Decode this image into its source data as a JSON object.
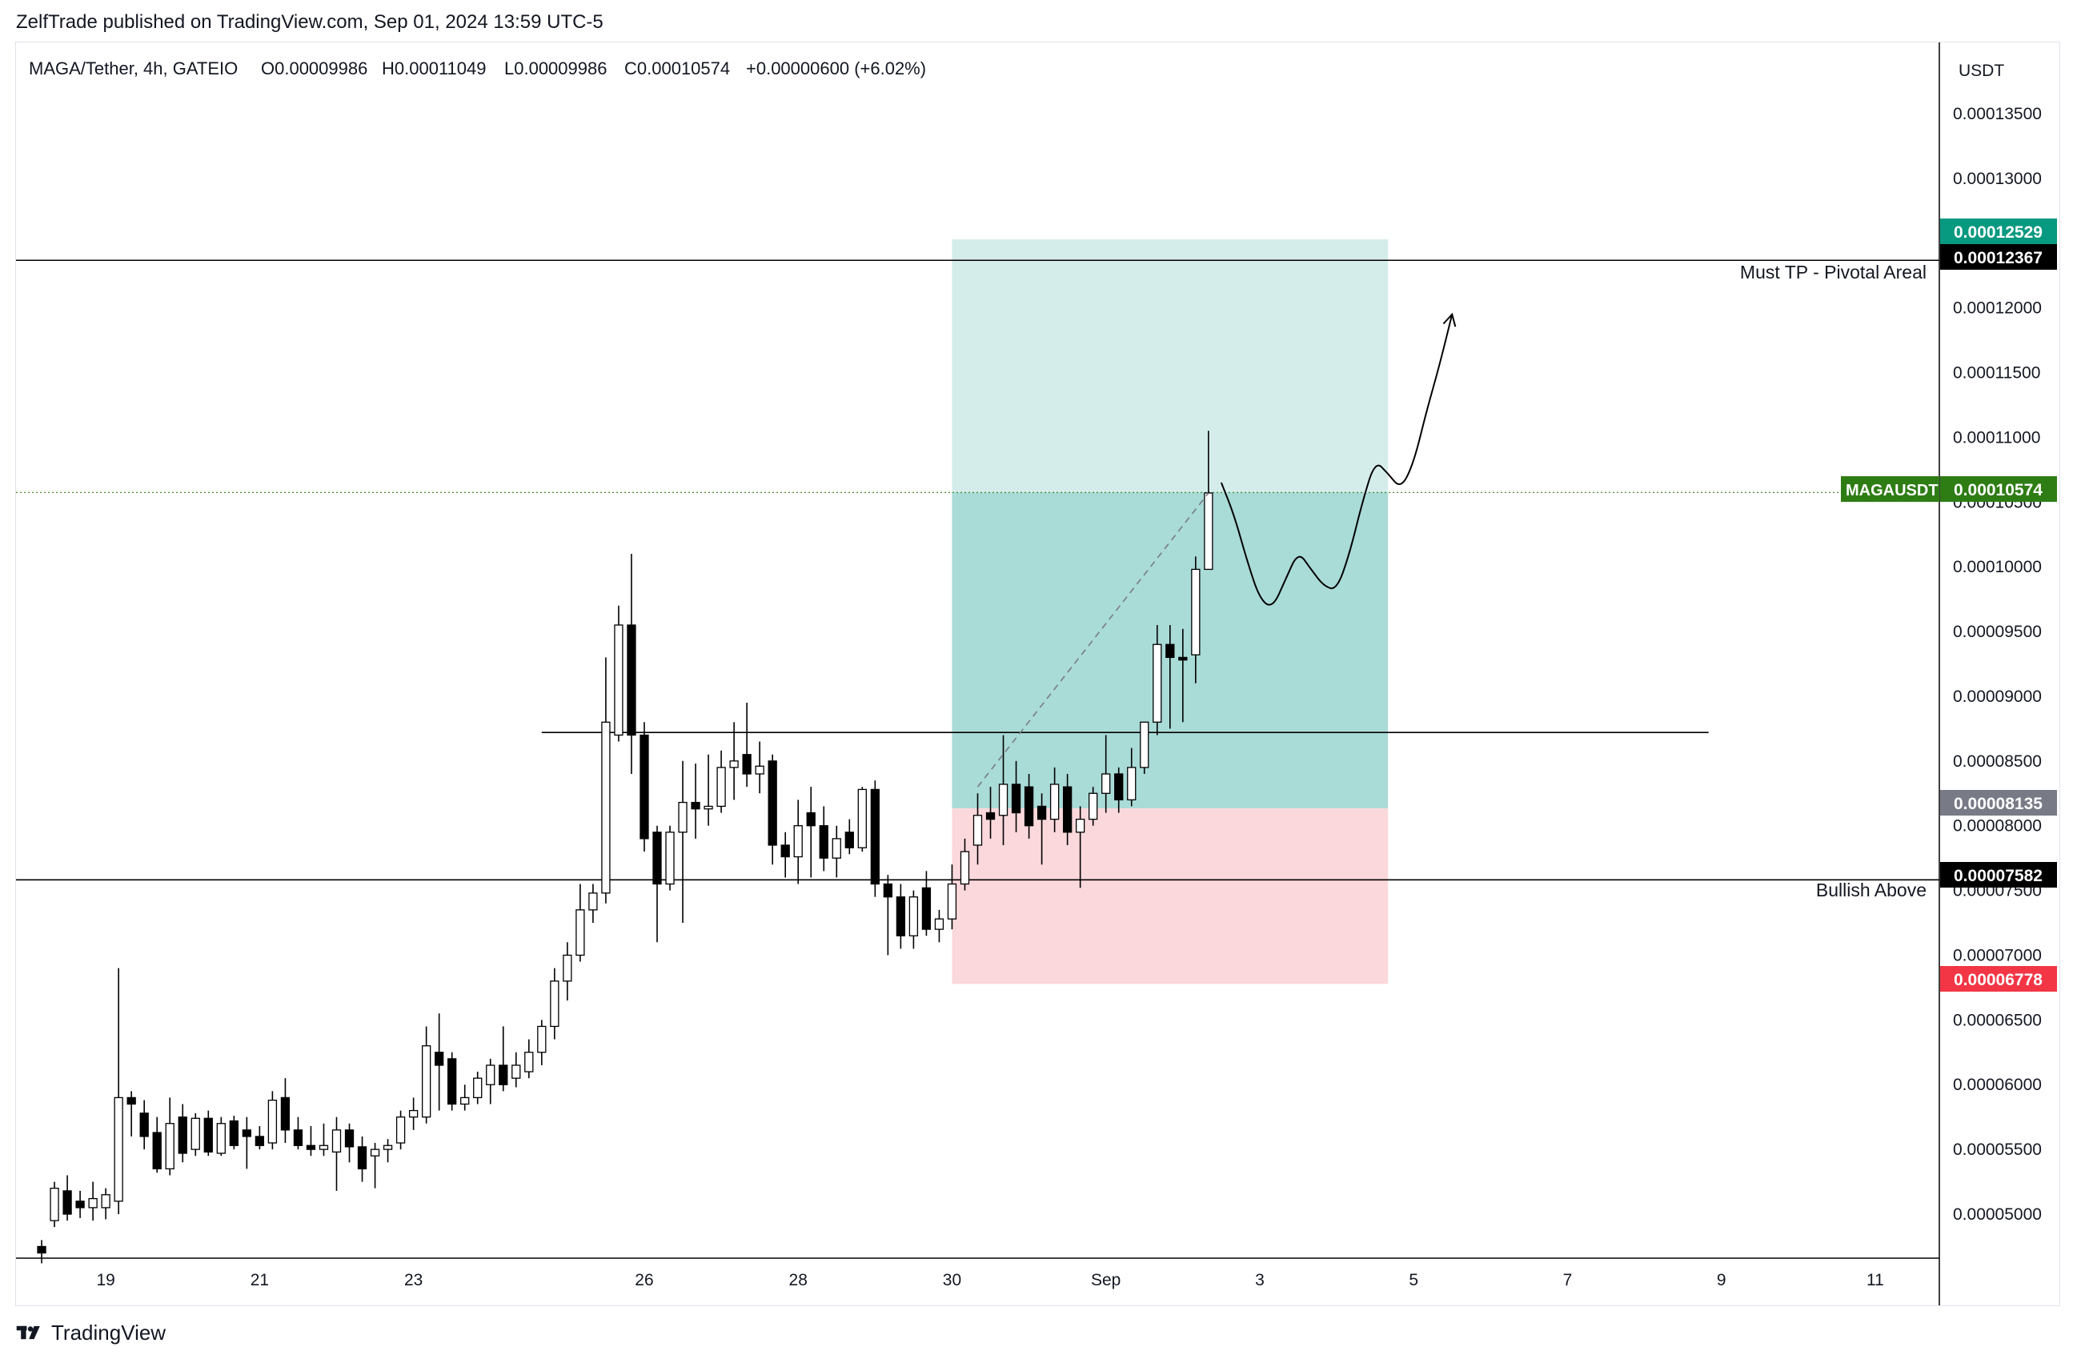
{
  "header": {
    "publisher_line": "ZelfTrade published on TradingView.com, Sep 01, 2024 13:59 UTC-5"
  },
  "footer": {
    "brand": "TradingView"
  },
  "legend": {
    "symbol": "MAGA/Tether, 4h, GATEIO",
    "open": "O0.00009986",
    "high": "H0.00011049",
    "low": "L0.00009986",
    "close": "C0.00010574",
    "change": "+0.00000600 (+6.02%)"
  },
  "axis": {
    "currency": "USDT",
    "price_ticks": [
      "0.00005000",
      "0.00005500",
      "0.00006000",
      "0.00006500",
      "0.00007000",
      "0.00007500",
      "0.00008000",
      "0.00008500",
      "0.00009000",
      "0.00009500",
      "0.00010000",
      "0.00010500",
      "0.00011000",
      "0.00011500",
      "0.00012000",
      "0.00012500",
      "0.00013000",
      "0.00013500"
    ],
    "time_ticks": [
      "19",
      "21",
      "23",
      "26",
      "28",
      "30",
      "Sep",
      "3",
      "5",
      "7",
      "9",
      "11"
    ]
  },
  "badges": {
    "target": "0.00012529",
    "pivot": "0.00012367",
    "last_symbol": "MAGAUSDT",
    "last_price": "0.00010574",
    "entry": "0.00008135",
    "bullish": "0.00007582",
    "stop": "0.00006778"
  },
  "annotations": {
    "pivot_label": "Must TP - Pivotal Areal",
    "bullish_label": "Bullish Above"
  },
  "colors": {
    "up_body": "#ffffff",
    "down_body": "#000000",
    "candle_outline": "#000000",
    "profit_zone": "#26a69a",
    "loss_zone": "#f7a9b2",
    "target_badge": "#089981",
    "last_badge": "#2e7d14",
    "entry_badge": "#787b86",
    "stop_badge": "#f23645",
    "level_badge": "#000000"
  },
  "chart_data": {
    "type": "candlestick",
    "timeframe": "4h",
    "symbol": "MAGA/Tether",
    "exchange": "GATEIO",
    "y_unit": "USDT",
    "ylim": [
      4.66e-05,
      0.0001405
    ],
    "x_range": [
      "2024-08-17 20:00",
      "2024-09-11 20:00"
    ],
    "grid": false,
    "candles": [
      {
        "t": "2024-08-18 04:00",
        "o": 4.75e-05,
        "h": 4.8e-05,
        "l": 4.62e-05,
        "c": 4.7e-05
      },
      {
        "t": "2024-08-18 08:00",
        "o": 4.95e-05,
        "h": 5.25e-05,
        "l": 4.9e-05,
        "c": 5.2e-05
      },
      {
        "t": "2024-08-18 12:00",
        "o": 5.18e-05,
        "h": 5.3e-05,
        "l": 4.95e-05,
        "c": 5e-05
      },
      {
        "t": "2024-08-18 16:00",
        "o": 5.1e-05,
        "h": 5.18e-05,
        "l": 4.97e-05,
        "c": 5.05e-05
      },
      {
        "t": "2024-08-18 20:00",
        "o": 5.05e-05,
        "h": 5.25e-05,
        "l": 4.95e-05,
        "c": 5.12e-05
      },
      {
        "t": "2024-08-19 00:00",
        "o": 5.05e-05,
        "h": 5.2e-05,
        "l": 4.96e-05,
        "c": 5.15e-05
      },
      {
        "t": "2024-08-19 04:00",
        "o": 5.1e-05,
        "h": 6.9e-05,
        "l": 5e-05,
        "c": 5.9e-05
      },
      {
        "t": "2024-08-19 08:00",
        "o": 5.9e-05,
        "h": 5.95e-05,
        "l": 5.6e-05,
        "c": 5.85e-05
      },
      {
        "t": "2024-08-19 12:00",
        "o": 5.78e-05,
        "h": 5.88e-05,
        "l": 5.5e-05,
        "c": 5.6e-05
      },
      {
        "t": "2024-08-19 16:00",
        "o": 5.63e-05,
        "h": 5.75e-05,
        "l": 5.32e-05,
        "c": 5.35e-05
      },
      {
        "t": "2024-08-19 20:00",
        "o": 5.35e-05,
        "h": 5.9e-05,
        "l": 5.3e-05,
        "c": 5.7e-05
      },
      {
        "t": "2024-08-20 00:00",
        "o": 5.75e-05,
        "h": 5.85e-05,
        "l": 5.4e-05,
        "c": 5.47e-05
      },
      {
        "t": "2024-08-20 04:00",
        "o": 5.5e-05,
        "h": 5.78e-05,
        "l": 5.45e-05,
        "c": 5.74e-05
      },
      {
        "t": "2024-08-20 08:00",
        "o": 5.74e-05,
        "h": 5.8e-05,
        "l": 5.45e-05,
        "c": 5.48e-05
      },
      {
        "t": "2024-08-20 12:00",
        "o": 5.47e-05,
        "h": 5.75e-05,
        "l": 5.45e-05,
        "c": 5.7e-05
      },
      {
        "t": "2024-08-20 16:00",
        "o": 5.72e-05,
        "h": 5.76e-05,
        "l": 5.5e-05,
        "c": 5.53e-05
      },
      {
        "t": "2024-08-20 20:00",
        "o": 5.65e-05,
        "h": 5.75e-05,
        "l": 5.35e-05,
        "c": 5.6e-05
      },
      {
        "t": "2024-08-21 00:00",
        "o": 5.6e-05,
        "h": 5.68e-05,
        "l": 5.5e-05,
        "c": 5.53e-05
      },
      {
        "t": "2024-08-21 04:00",
        "o": 5.55e-05,
        "h": 5.95e-05,
        "l": 5.5e-05,
        "c": 5.88e-05
      },
      {
        "t": "2024-08-21 08:00",
        "o": 5.9e-05,
        "h": 6.05e-05,
        "l": 5.55e-05,
        "c": 5.65e-05
      },
      {
        "t": "2024-08-21 12:00",
        "o": 5.65e-05,
        "h": 5.75e-05,
        "l": 5.5e-05,
        "c": 5.53e-05
      },
      {
        "t": "2024-08-21 16:00",
        "o": 5.53e-05,
        "h": 5.68e-05,
        "l": 5.45e-05,
        "c": 5.5e-05
      },
      {
        "t": "2024-08-21 20:00",
        "o": 5.5e-05,
        "h": 5.7e-05,
        "l": 5.45e-05,
        "c": 5.53e-05
      },
      {
        "t": "2024-08-22 00:00",
        "o": 5.48e-05,
        "h": 5.75e-05,
        "l": 5.18e-05,
        "c": 5.65e-05
      },
      {
        "t": "2024-08-22 04:00",
        "o": 5.65e-05,
        "h": 5.7e-05,
        "l": 5.4e-05,
        "c": 5.52e-05
      },
      {
        "t": "2024-08-22 08:00",
        "o": 5.52e-05,
        "h": 5.6e-05,
        "l": 5.25e-05,
        "c": 5.35e-05
      },
      {
        "t": "2024-08-22 12:00",
        "o": 5.45e-05,
        "h": 5.55e-05,
        "l": 5.2e-05,
        "c": 5.5e-05
      },
      {
        "t": "2024-08-22 16:00",
        "o": 5.5e-05,
        "h": 5.58e-05,
        "l": 5.4e-05,
        "c": 5.53e-05
      },
      {
        "t": "2024-08-22 20:00",
        "o": 5.55e-05,
        "h": 5.8e-05,
        "l": 5.5e-05,
        "c": 5.75e-05
      },
      {
        "t": "2024-08-23 00:00",
        "o": 5.75e-05,
        "h": 5.9e-05,
        "l": 5.65e-05,
        "c": 5.8e-05
      },
      {
        "t": "2024-08-23 04:00",
        "o": 5.75e-05,
        "h": 6.45e-05,
        "l": 5.7e-05,
        "c": 6.3e-05
      },
      {
        "t": "2024-08-23 08:00",
        "o": 6.25e-05,
        "h": 6.55e-05,
        "l": 5.8e-05,
        "c": 6.15e-05
      },
      {
        "t": "2024-08-23 12:00",
        "o": 6.2e-05,
        "h": 6.25e-05,
        "l": 5.8e-05,
        "c": 5.85e-05
      },
      {
        "t": "2024-08-23 16:00",
        "o": 5.85e-05,
        "h": 6e-05,
        "l": 5.8e-05,
        "c": 5.9e-05
      },
      {
        "t": "2024-08-23 20:00",
        "o": 5.9e-05,
        "h": 6.1e-05,
        "l": 5.85e-05,
        "c": 6.05e-05
      },
      {
        "t": "2024-08-24 00:00",
        "o": 6e-05,
        "h": 6.2e-05,
        "l": 5.85e-05,
        "c": 6.15e-05
      },
      {
        "t": "2024-08-24 04:00",
        "o": 6.15e-05,
        "h": 6.45e-05,
        "l": 5.95e-05,
        "c": 6e-05
      },
      {
        "t": "2024-08-24 08:00",
        "o": 6.05e-05,
        "h": 6.25e-05,
        "l": 5.98e-05,
        "c": 6.15e-05
      },
      {
        "t": "2024-08-24 12:00",
        "o": 6.1e-05,
        "h": 6.35e-05,
        "l": 6.05e-05,
        "c": 6.25e-05
      },
      {
        "t": "2024-08-24 16:00",
        "o": 6.25e-05,
        "h": 6.5e-05,
        "l": 6.15e-05,
        "c": 6.45e-05
      },
      {
        "t": "2024-08-24 20:00",
        "o": 6.45e-05,
        "h": 6.9e-05,
        "l": 6.35e-05,
        "c": 6.8e-05
      },
      {
        "t": "2024-08-25 00:00",
        "o": 6.8e-05,
        "h": 7.1e-05,
        "l": 6.65e-05,
        "c": 7e-05
      },
      {
        "t": "2024-08-25 04:00",
        "o": 7e-05,
        "h": 7.55e-05,
        "l": 6.95e-05,
        "c": 7.35e-05
      },
      {
        "t": "2024-08-25 08:00",
        "o": 7.35e-05,
        "h": 7.55e-05,
        "l": 7.25e-05,
        "c": 7.48e-05
      },
      {
        "t": "2024-08-25 12:00",
        "o": 7.48e-05,
        "h": 9.3e-05,
        "l": 7.4e-05,
        "c": 8.8e-05
      },
      {
        "t": "2024-08-25 16:00",
        "o": 8.7e-05,
        "h": 9.7e-05,
        "l": 8.65e-05,
        "c": 9.55e-05
      },
      {
        "t": "2024-08-25 20:00",
        "o": 9.55e-05,
        "h": 0.000101,
        "l": 8.4e-05,
        "c": 8.7e-05
      },
      {
        "t": "2024-08-26 00:00",
        "o": 8.7e-05,
        "h": 8.8e-05,
        "l": 7.8e-05,
        "c": 7.9e-05
      },
      {
        "t": "2024-08-26 04:00",
        "o": 7.95e-05,
        "h": 8e-05,
        "l": 7.1e-05,
        "c": 7.55e-05
      },
      {
        "t": "2024-08-26 08:00",
        "o": 7.55e-05,
        "h": 8e-05,
        "l": 7.5e-05,
        "c": 7.95e-05
      },
      {
        "t": "2024-08-26 12:00",
        "o": 7.95e-05,
        "h": 8.5e-05,
        "l": 7.25e-05,
        "c": 8.18e-05
      },
      {
        "t": "2024-08-26 16:00",
        "o": 8.18e-05,
        "h": 8.48e-05,
        "l": 7.9e-05,
        "c": 8.13e-05
      },
      {
        "t": "2024-08-26 20:00",
        "o": 8.13e-05,
        "h": 8.55e-05,
        "l": 8e-05,
        "c": 8.15e-05
      },
      {
        "t": "2024-08-27 00:00",
        "o": 8.15e-05,
        "h": 8.58e-05,
        "l": 8.1e-05,
        "c": 8.45e-05
      },
      {
        "t": "2024-08-27 04:00",
        "o": 8.45e-05,
        "h": 8.8e-05,
        "l": 8.2e-05,
        "c": 8.5e-05
      },
      {
        "t": "2024-08-27 08:00",
        "o": 8.55e-05,
        "h": 8.95e-05,
        "l": 8.3e-05,
        "c": 8.4e-05
      },
      {
        "t": "2024-08-27 12:00",
        "o": 8.4e-05,
        "h": 8.65e-05,
        "l": 8.25e-05,
        "c": 8.46e-05
      },
      {
        "t": "2024-08-27 16:00",
        "o": 8.5e-05,
        "h": 8.55e-05,
        "l": 7.7e-05,
        "c": 7.85e-05
      },
      {
        "t": "2024-08-27 20:00",
        "o": 7.85e-05,
        "h": 7.95e-05,
        "l": 7.6e-05,
        "c": 7.76e-05
      },
      {
        "t": "2024-08-28 00:00",
        "o": 7.76e-05,
        "h": 8.2e-05,
        "l": 7.55e-05,
        "c": 8e-05
      },
      {
        "t": "2024-08-28 04:00",
        "o": 8.1e-05,
        "h": 8.3e-05,
        "l": 7.6e-05,
        "c": 8e-05
      },
      {
        "t": "2024-08-28 08:00",
        "o": 8e-05,
        "h": 8.15e-05,
        "l": 7.65e-05,
        "c": 7.75e-05
      },
      {
        "t": "2024-08-28 12:00",
        "o": 7.75e-05,
        "h": 8e-05,
        "l": 7.6e-05,
        "c": 7.9e-05
      },
      {
        "t": "2024-08-28 16:00",
        "o": 7.95e-05,
        "h": 8.05e-05,
        "l": 7.78e-05,
        "c": 7.83e-05
      },
      {
        "t": "2024-08-28 20:00",
        "o": 7.83e-05,
        "h": 8.3e-05,
        "l": 7.8e-05,
        "c": 8.28e-05
      },
      {
        "t": "2024-08-29 00:00",
        "o": 8.28e-05,
        "h": 8.35e-05,
        "l": 7.45e-05,
        "c": 7.55e-05
      },
      {
        "t": "2024-08-29 04:00",
        "o": 7.55e-05,
        "h": 7.62e-05,
        "l": 7e-05,
        "c": 7.45e-05
      },
      {
        "t": "2024-08-29 08:00",
        "o": 7.45e-05,
        "h": 7.55e-05,
        "l": 7.05e-05,
        "c": 7.15e-05
      },
      {
        "t": "2024-08-29 12:00",
        "o": 7.15e-05,
        "h": 7.5e-05,
        "l": 7.05e-05,
        "c": 7.45e-05
      },
      {
        "t": "2024-08-29 16:00",
        "o": 7.52e-05,
        "h": 7.65e-05,
        "l": 7.15e-05,
        "c": 7.2e-05
      },
      {
        "t": "2024-08-29 20:00",
        "o": 7.2e-05,
        "h": 7.35e-05,
        "l": 7.1e-05,
        "c": 7.28e-05
      },
      {
        "t": "2024-08-30 00:00",
        "o": 7.28e-05,
        "h": 7.7e-05,
        "l": 7.2e-05,
        "c": 7.55e-05
      },
      {
        "t": "2024-08-30 04:00",
        "o": 7.55e-05,
        "h": 7.9e-05,
        "l": 7.5e-05,
        "c": 7.8e-05
      },
      {
        "t": "2024-08-30 08:00",
        "o": 7.85e-05,
        "h": 8.25e-05,
        "l": 7.7e-05,
        "c": 8.08e-05
      },
      {
        "t": "2024-08-30 12:00",
        "o": 8.1e-05,
        "h": 8.3e-05,
        "l": 7.9e-05,
        "c": 8.05e-05
      },
      {
        "t": "2024-08-30 16:00",
        "o": 8.08e-05,
        "h": 8.7e-05,
        "l": 7.85e-05,
        "c": 8.32e-05
      },
      {
        "t": "2024-08-30 20:00",
        "o": 8.32e-05,
        "h": 8.5e-05,
        "l": 7.95e-05,
        "c": 8.1e-05
      },
      {
        "t": "2024-08-31 00:00",
        "o": 8.3e-05,
        "h": 8.4e-05,
        "l": 7.9e-05,
        "c": 8e-05
      },
      {
        "t": "2024-08-31 04:00",
        "o": 8.15e-05,
        "h": 8.25e-05,
        "l": 7.7e-05,
        "c": 8.05e-05
      },
      {
        "t": "2024-08-31 08:00",
        "o": 8.05e-05,
        "h": 8.45e-05,
        "l": 7.95e-05,
        "c": 8.32e-05
      },
      {
        "t": "2024-08-31 12:00",
        "o": 8.3e-05,
        "h": 8.4e-05,
        "l": 7.85e-05,
        "c": 7.95e-05
      },
      {
        "t": "2024-08-31 16:00",
        "o": 7.95e-05,
        "h": 8.15e-05,
        "l": 7.52e-05,
        "c": 8.05e-05
      },
      {
        "t": "2024-08-31 20:00",
        "o": 8.05e-05,
        "h": 8.3e-05,
        "l": 8e-05,
        "c": 8.25e-05
      },
      {
        "t": "2024-09-01 00:00",
        "o": 8.25e-05,
        "h": 8.7e-05,
        "l": 8.1e-05,
        "c": 8.4e-05
      },
      {
        "t": "2024-09-01 04:00",
        "o": 8.4e-05,
        "h": 8.45e-05,
        "l": 8.1e-05,
        "c": 8.2e-05
      },
      {
        "t": "2024-09-01 08:00",
        "o": 8.2e-05,
        "h": 8.6e-05,
        "l": 8.15e-05,
        "c": 8.45e-05
      },
      {
        "t": "2024-09-01 12:00",
        "o": 8.45e-05,
        "h": 8.8e-05,
        "l": 8.4e-05,
        "c": 8.8e-05
      },
      {
        "t": "2024-09-01 16:00",
        "o": 8.8e-05,
        "h": 9.55e-05,
        "l": 8.7e-05,
        "c": 9.4e-05
      },
      {
        "t": "2024-09-01 20:00",
        "o": 9.4e-05,
        "h": 9.55e-05,
        "l": 8.75e-05,
        "c": 9.3e-05
      },
      {
        "t": "2024-09-02 00:00",
        "o": 9.3e-05,
        "h": 9.52e-05,
        "l": 8.8e-05,
        "c": 9.28e-05
      },
      {
        "t": "2024-09-02 04:00",
        "o": 9.32e-05,
        "h": 0.0001008,
        "l": 9.1e-05,
        "c": 9.98e-05
      },
      {
        "t": "2024-09-02 08:00",
        "o": 9.98e-05,
        "h": 0.0001105,
        "l": 9.98e-05,
        "c": 0.0001057
      }
    ],
    "levels": [
      {
        "price": 0.00012367,
        "label": "Must TP - Pivotal Areal",
        "from": "2024-08-17 20:00",
        "to": "2024-09-11 20:00"
      },
      {
        "price": 8.72e-05,
        "label": "",
        "from": "2024-08-24 16:00",
        "to": "2024-09-08 20:00"
      },
      {
        "price": 7.582e-05,
        "label": "Bullish Above",
        "from": "2024-08-17 20:00",
        "to": "2024-09-11 20:00"
      }
    ],
    "last_price_line": 0.00010574,
    "long_position": {
      "from": "2024-08-30 00:00",
      "to": "2024-09-04 16:00",
      "entry": 8.135e-05,
      "target": 0.00012529,
      "stop": 6.778e-05
    },
    "trend_dashes": [
      [
        "2024-08-30 08:00",
        8.3e-05
      ],
      [
        "2024-09-02 08:00",
        0.0001057
      ]
    ],
    "projection_path": [
      [
        "2024-09-02 12:00",
        0.0001065
      ],
      [
        "2024-09-02 16:00",
        0.000104
      ],
      [
        "2024-09-02 20:00",
        0.0001005
      ],
      [
        "2024-09-03 00:00",
        9.75e-05
      ],
      [
        "2024-09-03 04:00",
        9.68e-05
      ],
      [
        "2024-09-03 08:00",
        9.9e-05
      ],
      [
        "2024-09-03 12:00",
        0.0001012
      ],
      [
        "2024-09-03 16:00",
        9.98e-05
      ],
      [
        "2024-09-03 20:00",
        9.85e-05
      ],
      [
        "2024-09-04 00:00",
        9.82e-05
      ],
      [
        "2024-09-04 04:00",
        0.000101
      ],
      [
        "2024-09-04 08:00",
        0.000105
      ],
      [
        "2024-09-04 12:00",
        0.0001082
      ],
      [
        "2024-09-04 16:00",
        0.0001072
      ],
      [
        "2024-09-04 20:00",
        0.000106
      ],
      [
        "2024-09-05 00:00",
        0.000108
      ],
      [
        "2024-09-05 04:00",
        0.000112
      ],
      [
        "2024-09-05 08:00",
        0.0001155
      ],
      [
        "2024-09-05 12:00",
        0.0001195
      ]
    ]
  }
}
